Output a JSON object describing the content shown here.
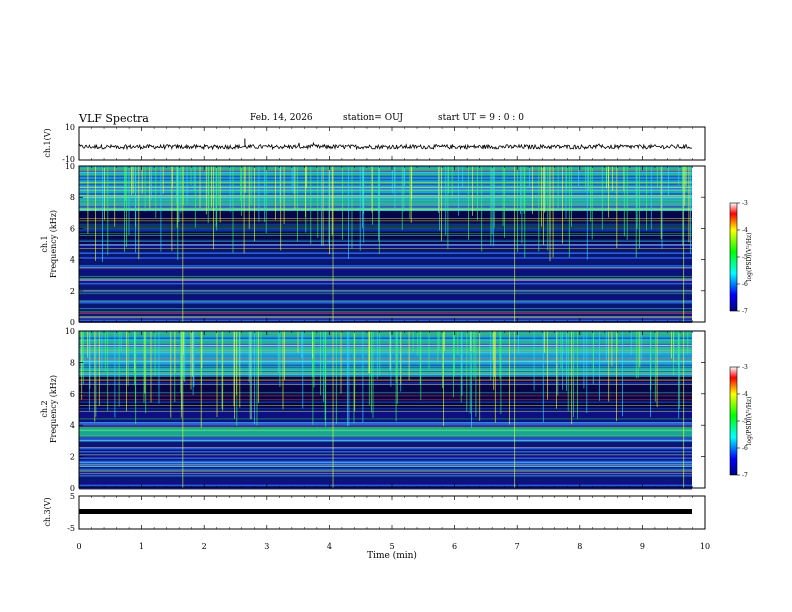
{
  "header": {
    "title": "VLF Spectra",
    "date": "Feb. 14, 2026",
    "station": "station= OUJ",
    "start": "start  UT =   9 : 0  : 0"
  },
  "chart_data": [
    {
      "type": "line",
      "panel": "ch1-waveform",
      "ylabel": "ch.1(V)",
      "y_ticks": [
        "10",
        "-10"
      ],
      "ylim": [
        -10,
        10
      ],
      "x": [
        0,
        10
      ],
      "trace": "dense noise waveform near -2 V"
    },
    {
      "type": "heatmap",
      "panel": "ch1-spectrogram",
      "ylabel": "ch.1\nFrequency (kHz)",
      "ylabel_line1": "ch.1",
      "ylabel_line2": "Frequency (kHz)",
      "y_ticks": [
        "0",
        "2",
        "4",
        "6",
        "8",
        "10"
      ],
      "ylim": [
        0,
        10
      ],
      "colorbar": {
        "label": "log(PSD)(V²/Hz)",
        "range": [
          -7,
          -3
        ],
        "ticks": [
          "-3",
          "-4",
          "-5",
          "-6",
          "-7"
        ]
      }
    },
    {
      "type": "heatmap",
      "panel": "ch2-spectrogram",
      "ylabel_line1": "ch.2",
      "ylabel_line2": "Frequency (kHz)",
      "y_ticks": [
        "0",
        "2",
        "4",
        "6",
        "8",
        "10"
      ],
      "ylim": [
        0,
        10
      ],
      "colorbar": {
        "label": "log(PSD)(V²/Hz)",
        "range": [
          -7,
          -3
        ],
        "ticks": [
          "-3",
          "-4",
          "-5",
          "-6",
          "-7"
        ]
      }
    },
    {
      "type": "line",
      "panel": "ch3-waveform",
      "ylabel": "ch.3(V)",
      "y_ticks": [
        "5",
        "-5"
      ],
      "ylim": [
        -5,
        5
      ],
      "trace": "thick constant line near -1 V"
    }
  ],
  "x_axis": {
    "label": "Time  (min)",
    "ticks": [
      "0",
      "1",
      "2",
      "3",
      "4",
      "5",
      "6",
      "7",
      "8",
      "9",
      "10"
    ],
    "range": [
      0,
      10
    ]
  },
  "colors": {
    "frame": "#000000",
    "spectrum_low": "#00007a",
    "spectrum_high": "#ff0000"
  }
}
